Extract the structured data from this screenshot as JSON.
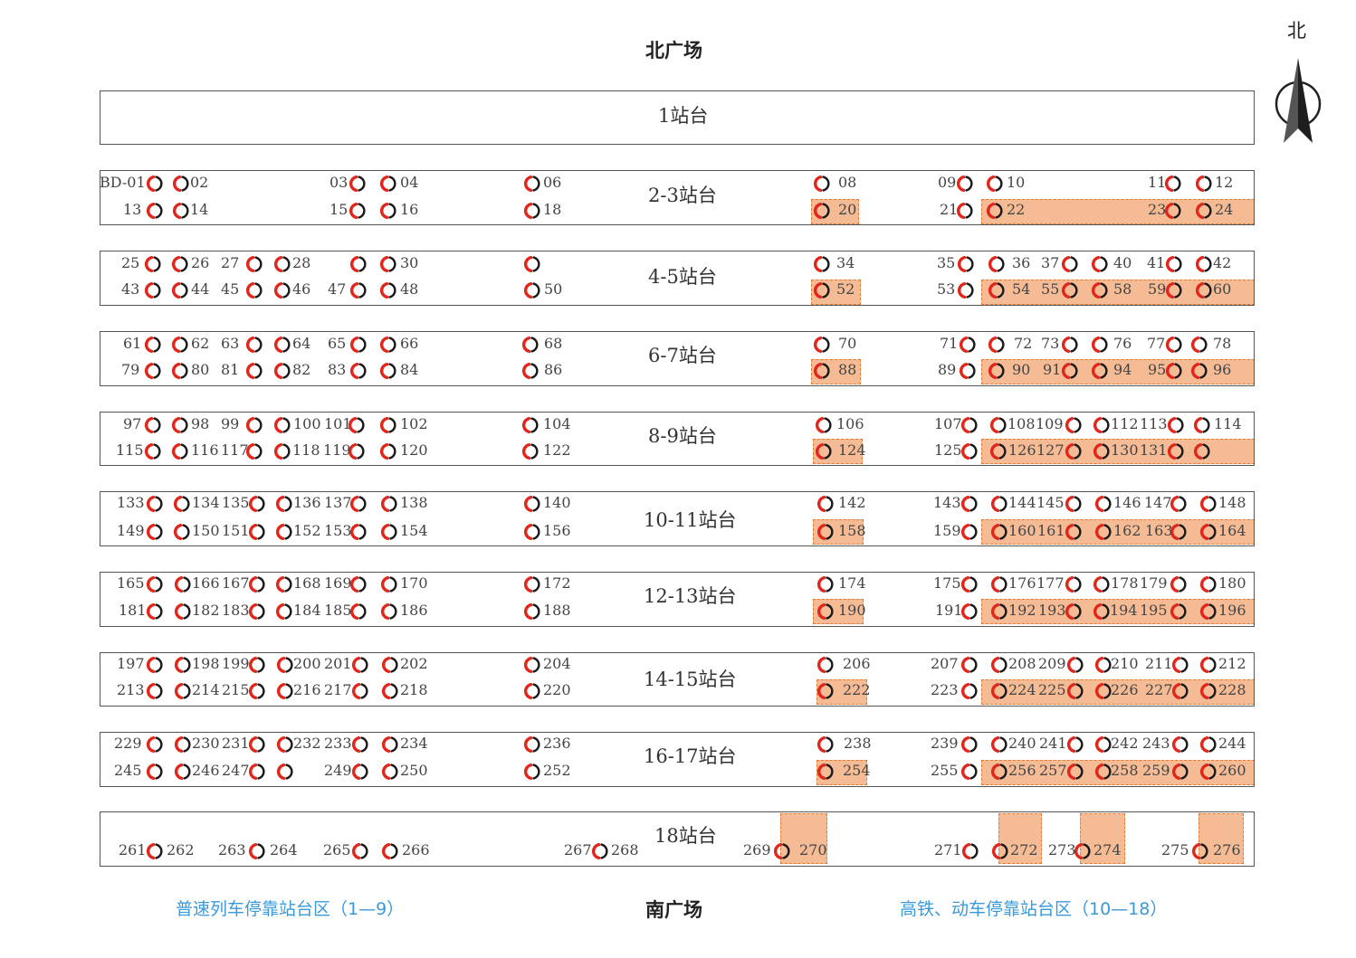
{
  "labels": {
    "north_plaza": "北广场",
    "south_plaza": "南广场",
    "north": "北",
    "normal_zone": "普速列车停靠站台区（1—9）",
    "hsr_zone": "高铁、动车停靠站台区（10—18）"
  },
  "colors": {
    "icon_red": "#e1261c",
    "highlight": "#f5bb95",
    "highlight_border": "#e07b3a",
    "legend_blue": "#3a9ad9"
  },
  "platforms": [
    {
      "id": "p1",
      "name": "1站台"
    },
    {
      "id": "p23",
      "name": "2-3站台"
    },
    {
      "id": "p45",
      "name": "4-5站台"
    },
    {
      "id": "p67",
      "name": "6-7站台"
    },
    {
      "id": "p89",
      "name": "8-9站台"
    },
    {
      "id": "p1011",
      "name": "10-11站台"
    },
    {
      "id": "p1213",
      "name": "12-13站台"
    },
    {
      "id": "p1415",
      "name": "14-15站台"
    },
    {
      "id": "p1617",
      "name": "16-17站台"
    },
    {
      "id": "p18",
      "name": "18站台"
    }
  ],
  "numbers": [
    "BD-01",
    "02",
    "03",
    "04",
    "06",
    "08",
    "09",
    "10",
    "11",
    "12",
    "13",
    "14",
    "15",
    "16",
    "18",
    "20",
    "21",
    "22",
    "23",
    "24",
    "25",
    "26",
    "27",
    "28",
    "30",
    "34",
    "35",
    "36",
    "37",
    "40",
    "41",
    "42",
    "43",
    "44",
    "45",
    "46",
    "47",
    "48",
    "50",
    "52",
    "53",
    "54",
    "55",
    "58",
    "59",
    "60",
    "61",
    "62",
    "63",
    "64",
    "65",
    "66",
    "68",
    "70",
    "71",
    "72",
    "73",
    "76",
    "77",
    "78",
    "79",
    "80",
    "81",
    "82",
    "83",
    "84",
    "86",
    "88",
    "89",
    "90",
    "91",
    "94",
    "95",
    "96",
    "97",
    "98",
    "99",
    "100",
    "101",
    "102",
    "104",
    "106",
    "107",
    "108",
    "109",
    "112",
    "113",
    "114",
    "115",
    "116",
    "117",
    "118",
    "119",
    "120",
    "122",
    "124",
    "125",
    "126",
    "127",
    "130",
    "131",
    "133",
    "134",
    "135",
    "136",
    "137",
    "138",
    "140",
    "142",
    "143",
    "144",
    "145",
    "146",
    "147",
    "148",
    "149",
    "150",
    "151",
    "152",
    "153",
    "154",
    "156",
    "158",
    "159",
    "160",
    "161",
    "162",
    "163",
    "164",
    "165",
    "166",
    "167",
    "168",
    "169",
    "170",
    "172",
    "174",
    "175",
    "176",
    "177",
    "178",
    "179",
    "180",
    "181",
    "182",
    "183",
    "184",
    "185",
    "186",
    "188",
    "190",
    "191",
    "192",
    "193",
    "194",
    "195",
    "196",
    "197",
    "198",
    "199",
    "200",
    "201",
    "202",
    "204",
    "206",
    "207",
    "208",
    "209",
    "210",
    "211",
    "212",
    "213",
    "214",
    "215",
    "216",
    "217",
    "218",
    "220",
    "222",
    "223",
    "224",
    "225",
    "226",
    "227",
    "228",
    "229",
    "230",
    "231",
    "232",
    "233",
    "234",
    "236",
    "238",
    "239",
    "240",
    "241",
    "242",
    "243",
    "244",
    "245",
    "246",
    "247",
    "249",
    "250",
    "252",
    "254",
    "255",
    "256",
    "257",
    "258",
    "259",
    "260",
    "261",
    "262",
    "263",
    "264",
    "265",
    "266",
    "267",
    "268",
    "269",
    "270",
    "271",
    "272",
    "273",
    "274",
    "275",
    "276"
  ]
}
